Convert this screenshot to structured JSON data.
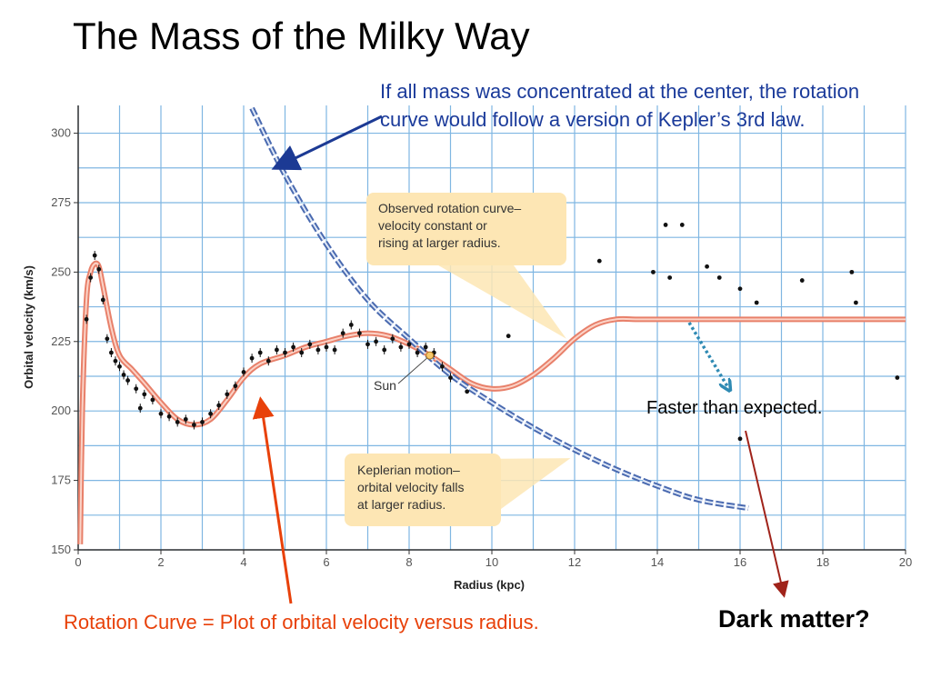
{
  "slide": {
    "title": "The Mass of the Milky Way",
    "kepler_note": "If all mass was concentrated at the center, the rotation curve would follow a version of Kepler’s 3rd law.",
    "faster_note": "Faster than expected.",
    "rotation_note": "Rotation Curve = Plot of orbital velocity versus radius.",
    "dark_matter_note": "Dark matter?"
  },
  "colors": {
    "observed_curve": "#e8806a",
    "keplerian_curve": "#4a6ab0",
    "grid": "#7fb6e2",
    "callout_fill": "#fde6b4",
    "blue_arrow": "#1c3a94",
    "red_arrow": "#e8410a",
    "dark_arrow": "#a0231a",
    "dotted_arrow": "#2f8ab3",
    "sun_marker": "#f6c86a"
  },
  "chart_data": {
    "type": "line",
    "xlabel": "Radius (kpc)",
    "ylabel": "Orbital velocity (km/s)",
    "xlim": [
      0,
      20
    ],
    "ylim": [
      150,
      310
    ],
    "xticks": [
      0,
      2,
      4,
      6,
      8,
      10,
      12,
      14,
      16,
      18,
      20
    ],
    "yticks": [
      150,
      175,
      200,
      225,
      250,
      275,
      300
    ],
    "grid": true,
    "series": [
      {
        "style": "solid",
        "x": [
          0.05,
          0.1,
          0.2,
          0.3,
          0.4,
          0.5,
          0.6,
          0.8,
          1.0,
          1.3,
          1.6,
          2.0,
          2.4,
          2.8,
          3.2,
          3.6,
          4.0,
          4.4,
          5.0,
          5.5,
          6.0,
          6.5,
          7.0,
          7.5,
          8.0,
          8.5,
          9.0,
          9.5,
          10.0,
          10.5,
          11.0,
          11.5,
          12.0,
          12.5,
          13.0,
          13.5,
          14.0,
          16.0,
          18.0,
          20.0
        ],
        "values": [
          152,
          200,
          240,
          250,
          253,
          252,
          245,
          230,
          220,
          215,
          210,
          203,
          197,
          195,
          197,
          204,
          212,
          217,
          220,
          223,
          225,
          227,
          228,
          227,
          224,
          220,
          215,
          210,
          208,
          209,
          213,
          219,
          226,
          231,
          233,
          233,
          233,
          233,
          233,
          233
        ]
      },
      {
        "style": "dashed",
        "x": [
          4.2,
          5.0,
          6.0,
          7.0,
          8.0,
          9.0,
          10.0,
          11.0,
          12.0,
          13.0,
          14.0,
          15.0,
          16.2
        ],
        "values": [
          309,
          285,
          260,
          240,
          226,
          213,
          203,
          194,
          186,
          179,
          173,
          168,
          165
        ]
      }
    ],
    "scatter_points": {
      "x": [
        0.2,
        0.3,
        0.4,
        0.5,
        0.6,
        0.7,
        0.8,
        0.9,
        1.0,
        1.1,
        1.2,
        1.4,
        1.5,
        1.6,
        1.8,
        2.0,
        2.2,
        2.4,
        2.6,
        2.8,
        3.0,
        3.2,
        3.4,
        3.6,
        3.8,
        4.0,
        4.2,
        4.4,
        4.6,
        4.8,
        5.0,
        5.2,
        5.4,
        5.6,
        5.8,
        6.0,
        6.2,
        6.4,
        6.6,
        6.8,
        7.0,
        7.2,
        7.4,
        7.6,
        7.8,
        8.0,
        8.2,
        8.4,
        8.6,
        8.8,
        9.0,
        9.4,
        10.4,
        12.6,
        13.9,
        14.2,
        14.3,
        14.6,
        15.2,
        15.5,
        16.0,
        16.4,
        17.5,
        18.7,
        18.8,
        19.8,
        16.0
      ],
      "values": [
        233,
        248,
        256,
        251,
        240,
        226,
        221,
        218,
        216,
        213,
        211,
        208,
        201,
        206,
        204,
        199,
        198,
        196,
        197,
        195,
        196,
        199,
        202,
        206,
        209,
        214,
        219,
        221,
        218,
        222,
        221,
        223,
        221,
        224,
        222,
        223,
        222,
        228,
        231,
        228,
        224,
        225,
        222,
        226,
        223,
        224,
        221,
        223,
        221,
        216,
        212,
        207,
        227,
        254,
        250,
        267,
        248,
        267,
        252,
        248,
        244,
        239,
        247,
        250,
        239,
        212,
        190
      ]
    },
    "annotations": [
      "Observed rotation curve– velocity constant or rising at larger radius.",
      "Keplerian motion– orbital velocity falls at larger radius.",
      "Sun"
    ],
    "sun_point": {
      "x": 8.5,
      "y": 220
    }
  },
  "callouts": {
    "observed_lines": [
      "Observed rotation curve–",
      "velocity constant or",
      "rising at larger radius."
    ],
    "kepler_lines": [
      "Keplerian motion–",
      "orbital velocity falls",
      "at larger radius."
    ],
    "sun_label": "Sun"
  }
}
